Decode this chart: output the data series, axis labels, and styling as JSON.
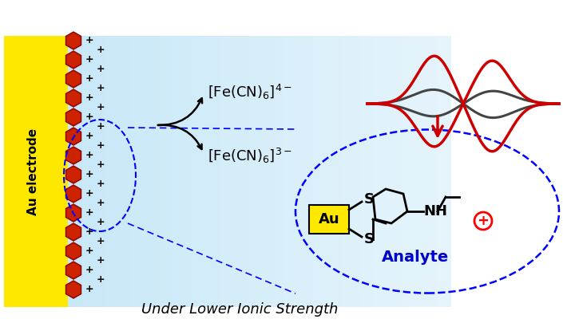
{
  "bg_color": "#ffffff",
  "au_electrode_color": "#FFE800",
  "hexagon_color": "#cc2200",
  "hexagon_edge_color": "#880000",
  "solution_color": "#c8e8f8",
  "analyte_color": "#0000cc",
  "au_box_color": "#FFE800",
  "arrow_color": "#cc0000",
  "gray_cv_color": "#444444",
  "red_cv_color": "#cc0000",
  "subtitle": "Under Lower Ionic Strength",
  "fe3_label": "[Fe(CN)$_6$]$^{3-}$",
  "fe4_label": "[Fe(CN)$_6$]$^{4-}$",
  "analyte_label": "Analyte"
}
